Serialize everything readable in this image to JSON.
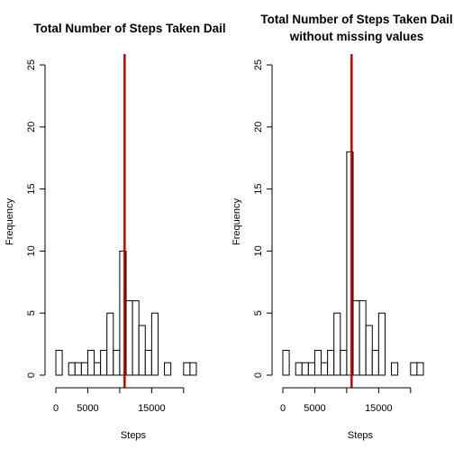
{
  "chart_data": [
    {
      "type": "histogram",
      "title": [
        "Total Number of Steps Taken Dail"
      ],
      "xlabel": "Steps",
      "ylabel": "Frequency",
      "xlim": [
        0,
        22000
      ],
      "ylim": [
        0,
        25
      ],
      "x_ticks": [
        0,
        5000,
        15000
      ],
      "y_ticks": [
        0,
        5,
        10,
        15,
        20,
        25
      ],
      "bin_start": 0,
      "bin_width": 1000,
      "counts": [
        2,
        0,
        1,
        1,
        1,
        2,
        1,
        2,
        5,
        2,
        10,
        6,
        6,
        4,
        2,
        5,
        0,
        1,
        0,
        0,
        1,
        1
      ],
      "vline": {
        "x": 10766,
        "color": "#cc0000"
      },
      "bar_fill": "#ffffff",
      "bar_stroke": "#000000"
    },
    {
      "type": "histogram",
      "title": [
        "Total Number of Steps Taken Dail",
        "without missing values"
      ],
      "xlabel": "Steps",
      "ylabel": "Frequency",
      "xlim": [
        0,
        22000
      ],
      "ylim": [
        0,
        25
      ],
      "x_ticks": [
        0,
        5000,
        15000
      ],
      "y_ticks": [
        0,
        5,
        10,
        15,
        20,
        25
      ],
      "bin_start": 0,
      "bin_width": 1000,
      "counts": [
        2,
        0,
        1,
        1,
        1,
        2,
        1,
        2,
        5,
        2,
        18,
        6,
        6,
        4,
        2,
        5,
        0,
        1,
        0,
        0,
        1,
        1
      ],
      "vline": {
        "x": 10766,
        "color": "#cc0000"
      },
      "bar_fill": "#ffffff",
      "bar_stroke": "#000000"
    }
  ]
}
